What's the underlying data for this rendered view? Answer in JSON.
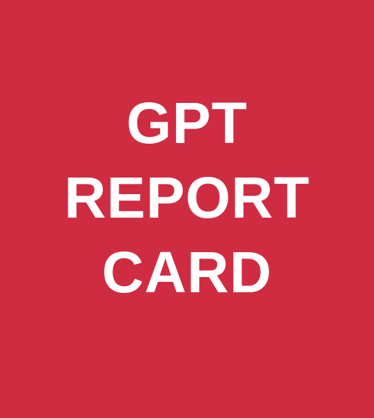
{
  "card": {
    "background_color": "#cf2c42",
    "text_color": "#ffffff",
    "title_lines": [
      "GPT",
      "REPORT",
      "CARD"
    ]
  }
}
